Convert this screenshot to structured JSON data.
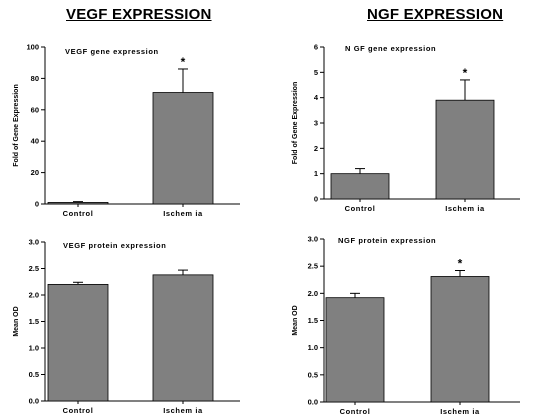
{
  "headings": {
    "left": "VEGF EXPRESSION",
    "right": "NGF EXPRESSION"
  },
  "chart_data": [
    {
      "type": "bar",
      "title": "VEGF gene expression",
      "ylabel": "Fold of Gene Expression",
      "categories": [
        "Control",
        "Ischemia"
      ],
      "values": [
        1,
        71
      ],
      "errors": [
        0.5,
        15
      ],
      "significance": [
        "",
        "*"
      ],
      "ylim": [
        0,
        100
      ],
      "yticks": [
        0,
        20,
        40,
        60,
        80,
        100
      ],
      "ytick_labels": [
        "0",
        "20",
        "40",
        "60",
        "80",
        "100"
      ],
      "xtick_labels": [
        "Control",
        "Ischem ia"
      ],
      "grid": false,
      "bar_color": "#808080"
    },
    {
      "type": "bar",
      "title": "N GF gene expression",
      "ylabel": "Fold of Gene Expression",
      "categories": [
        "Control",
        "Ischemia"
      ],
      "values": [
        1.0,
        3.9
      ],
      "errors": [
        0.2,
        0.8
      ],
      "significance": [
        "",
        "*"
      ],
      "ylim": [
        0,
        6
      ],
      "yticks": [
        0,
        1,
        2,
        3,
        4,
        5,
        6
      ],
      "ytick_labels": [
        "0",
        "1",
        "2",
        "3",
        "4",
        "5",
        "6"
      ],
      "xtick_labels": [
        "Control",
        "Ischem ia"
      ],
      "grid": false,
      "bar_color": "#808080"
    },
    {
      "type": "bar",
      "title": "VEGF protein expression",
      "ylabel": "Mean OD",
      "categories": [
        "Control",
        "Ischemia"
      ],
      "values": [
        2.2,
        2.38
      ],
      "errors": [
        0.04,
        0.09
      ],
      "significance": [
        "",
        ""
      ],
      "ylim": [
        0,
        3.0
      ],
      "yticks": [
        0,
        0.5,
        1.0,
        1.5,
        2.0,
        2.5,
        3.0
      ],
      "ytick_labels": [
        "0.0",
        "0.5",
        "1.0",
        "1.5",
        "2.0",
        "2.5",
        "3.0"
      ],
      "xtick_labels": [
        "Control",
        "Ischem ia"
      ],
      "grid": false,
      "bar_color": "#808080"
    },
    {
      "type": "bar",
      "title": "NGF protein expression",
      "ylabel": "Mean OD",
      "categories": [
        "Control",
        "Ischemia"
      ],
      "values": [
        1.92,
        2.31
      ],
      "errors": [
        0.08,
        0.11
      ],
      "significance": [
        "",
        "*"
      ],
      "ylim": [
        0,
        3.0
      ],
      "yticks": [
        0,
        0.5,
        1.0,
        1.5,
        2.0,
        2.5,
        3.0
      ],
      "ytick_labels": [
        "0.0",
        "0.5",
        "1.0",
        "1.5",
        "2.0",
        "2.5",
        "3.0"
      ],
      "xtick_labels": [
        "Control",
        "Ischem ia"
      ],
      "grid": false,
      "bar_color": "#808080"
    }
  ]
}
